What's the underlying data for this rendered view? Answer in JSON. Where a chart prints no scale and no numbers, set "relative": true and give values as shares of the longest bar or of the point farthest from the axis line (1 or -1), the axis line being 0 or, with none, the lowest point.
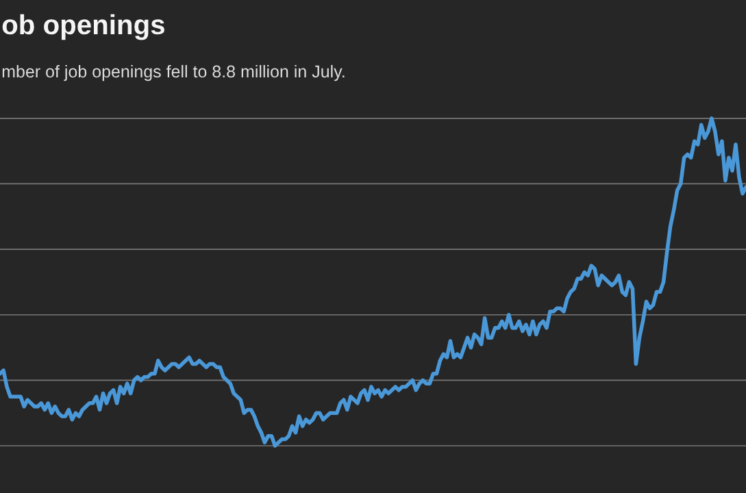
{
  "chart_data": {
    "type": "line",
    "title": "ob openings",
    "subtitle": "mber of job openings fell to 8.8 million in July.",
    "relative": true,
    "grid": "y",
    "categories": [
      null,
      null,
      null,
      null,
      null,
      null,
      null,
      null,
      null,
      null,
      null,
      null,
      null,
      null,
      null,
      null,
      null,
      null,
      null,
      null,
      null,
      null,
      null,
      null,
      null,
      null,
      null,
      null,
      null,
      null,
      null,
      null,
      null,
      null,
      null,
      null,
      null,
      null,
      null,
      null,
      null,
      null,
      null,
      null,
      null,
      null,
      null,
      null,
      null,
      null,
      null,
      null,
      null,
      null,
      null,
      null,
      null,
      null,
      null,
      null,
      null,
      null,
      null,
      null,
      null,
      null,
      null,
      null,
      null,
      null,
      null,
      null,
      null,
      null,
      null,
      null,
      null,
      null,
      null,
      null,
      null,
      null,
      null,
      null,
      null,
      null,
      null,
      null,
      null,
      null,
      null,
      null,
      null,
      null,
      null,
      null,
      null,
      null,
      null,
      null,
      null,
      null,
      null,
      null,
      null,
      null,
      null,
      null,
      null,
      null,
      null,
      null,
      null,
      null,
      null,
      null,
      null,
      null,
      null,
      null,
      null,
      null,
      null,
      null,
      null,
      null,
      null,
      null,
      null,
      null,
      null,
      null,
      null,
      null,
      null,
      null,
      null,
      null,
      null,
      null,
      null,
      null,
      null,
      null,
      null,
      null,
      null,
      null,
      null,
      null,
      null,
      null,
      null,
      null,
      null,
      null,
      null,
      null,
      null,
      null,
      null,
      null,
      null,
      null,
      null,
      null,
      null,
      null,
      null,
      null,
      null,
      null,
      null,
      null,
      null,
      null,
      null,
      null,
      null,
      null,
      null,
      null,
      null,
      null,
      null,
      null,
      null,
      null,
      null,
      null,
      null,
      null,
      null,
      null,
      null,
      null,
      null,
      null,
      null,
      null,
      null,
      null,
      null,
      null,
      null,
      null,
      null,
      null,
      null,
      null,
      null,
      null,
      null,
      null,
      null,
      null,
      null,
      null
    ],
    "series": [
      {
        "color": "#4a98d8",
        "values": [
          0.22,
          0.23,
          0.18,
          0.15,
          0.15,
          0.15,
          0.15,
          0.12,
          0.14,
          0.13,
          0.12,
          0.12,
          0.13,
          0.11,
          0.13,
          0.1,
          0.12,
          0.1,
          0.09,
          0.09,
          0.11,
          0.08,
          0.1,
          0.09,
          0.11,
          0.12,
          0.13,
          0.13,
          0.15,
          0.11,
          0.16,
          0.13,
          0.16,
          0.17,
          0.13,
          0.18,
          0.16,
          0.19,
          0.16,
          0.2,
          0.21,
          0.2,
          0.21,
          0.21,
          0.22,
          0.22,
          0.26,
          0.24,
          0.23,
          0.24,
          0.25,
          0.25,
          0.24,
          0.25,
          0.26,
          0.27,
          0.25,
          0.25,
          0.26,
          0.25,
          0.24,
          0.25,
          0.25,
          0.24,
          0.24,
          0.21,
          0.2,
          0.19,
          0.16,
          0.15,
          0.14,
          0.1,
          0.11,
          0.11,
          0.09,
          0.06,
          0.04,
          0.01,
          0.03,
          0.03,
          0,
          0.01,
          0.02,
          0.02,
          0.03,
          0.06,
          0.04,
          0.09,
          0.06,
          0.08,
          0.07,
          0.08,
          0.1,
          0.1,
          0.08,
          0.09,
          0.1,
          0.1,
          0.1,
          0.13,
          0.14,
          0.11,
          0.15,
          0.14,
          0.13,
          0.16,
          0.17,
          0.14,
          0.18,
          0.16,
          0.17,
          0.15,
          0.17,
          0.16,
          0.17,
          0.18,
          0.17,
          0.18,
          0.18,
          0.19,
          0.2,
          0.17,
          0.19,
          0.2,
          0.19,
          0.19,
          0.22,
          0.22,
          0.26,
          0.28,
          0.27,
          0.32,
          0.27,
          0.28,
          0.27,
          0.3,
          0.33,
          0.3,
          0.34,
          0.33,
          0.31,
          0.39,
          0.33,
          0.33,
          0.36,
          0.36,
          0.38,
          0.36,
          0.4,
          0.36,
          0.36,
          0.38,
          0.35,
          0.37,
          0.34,
          0.38,
          0.34,
          0.37,
          0.38,
          0.36,
          0.41,
          0.41,
          0.42,
          0.42,
          0.41,
          0.45,
          0.47,
          0.48,
          0.51,
          0.51,
          0.53,
          0.52,
          0.55,
          0.54,
          0.49,
          0.52,
          0.51,
          0.5,
          0.49,
          0.5,
          0.52,
          0.47,
          0.46,
          0.5,
          0.48,
          0.25,
          0.33,
          0.38,
          0.44,
          0.42,
          0.43,
          0.47,
          0.47,
          0.5,
          0.59,
          0.67,
          0.72,
          0.78,
          0.8,
          0.88,
          0.89,
          0.88,
          0.93,
          0.92,
          0.98,
          0.94,
          0.96,
          1,
          0.96,
          0.89,
          0.93,
          0.81,
          0.88,
          0.84,
          0.92,
          0.82,
          0.77,
          0.79
        ]
      }
    ]
  }
}
